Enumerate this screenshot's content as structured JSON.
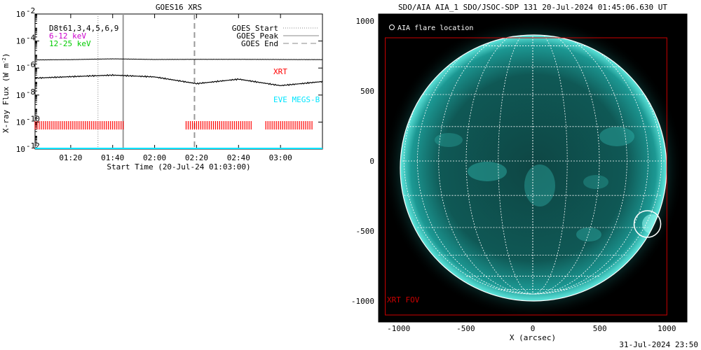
{
  "left_panel": {
    "title": "GOES16 XRS",
    "ylabel": "X-ray Flux (W m",
    "ylabel_sup": "-2",
    "ylabel_close": ")",
    "xlabel": "Start Time (20-Jul-24 01:03:00)",
    "ytick_labels": [
      "10",
      "10",
      "10",
      "10",
      "10",
      "10"
    ],
    "ytick_exps": [
      "-2",
      "-4",
      "-6",
      "-8",
      "-10",
      "-12"
    ],
    "xtick_labels": [
      "01:20",
      "01:40",
      "02:00",
      "02:20",
      "02:40",
      "03:00"
    ],
    "info_lines": [
      "D8t61,3,4,5,6,9",
      "6-12 keV",
      "12-25 keV"
    ],
    "legend": [
      {
        "label": "GOES Start",
        "style": "dotted"
      },
      {
        "label": "GOES Peak",
        "style": "solid"
      },
      {
        "label": "GOES End",
        "style": "dashed"
      }
    ],
    "annotations": {
      "xrt": "XRT",
      "eve": "EVE MEGS-B"
    },
    "colors": {
      "info_6_12": "#cc00cc",
      "info_12_25": "#00cc00",
      "xrt": "#ff0000",
      "eve": "#00ffff"
    }
  },
  "chart_data": [
    {
      "type": "line",
      "title": "GOES16 XRS",
      "xlabel": "Start Time (20-Jul-24 01:03:00)",
      "ylabel": "X-ray Flux (W m-2)",
      "y_scale": "log",
      "ylim": [
        1e-12,
        0.01
      ],
      "xlim": [
        "01:03",
        "03:20"
      ],
      "x": [
        "01:03",
        "01:20",
        "01:40",
        "02:00",
        "02:20",
        "02:40",
        "03:00",
        "03:20"
      ],
      "series": [
        {
          "values": [
            4e-06,
            4.2e-06,
            4.8e-06,
            4.3e-06,
            4.4e-06,
            4.4e-06,
            4.3e-06,
            4.2e-06
          ],
          "color": "#000000"
        },
        {
          "values": [
            1.8e-07,
            2.3e-07,
            3e-07,
            2.2e-07,
            7e-08,
            1.5e-07,
            5e-08,
            1e-07
          ],
          "color": "#000000"
        }
      ],
      "markers": {
        "goes_start": "01:33",
        "goes_peak": "01:45",
        "goes_end": "02:19"
      },
      "xrt_coverage": [
        [
          "01:03",
          "01:45"
        ],
        [
          "02:15",
          "02:46"
        ],
        [
          "02:53",
          "03:15"
        ]
      ],
      "eve_megs_b_level": 1e-12
    },
    {
      "type": "heatmap",
      "title": "SDO/AIA AIA_1 SDO/JSOC-SDP 131 20-Jul-2024 01:45:06.630 UT",
      "xlabel": "X (arcsec)",
      "xlim": [
        -1150,
        1150
      ],
      "ylim": [
        -1150,
        1050
      ],
      "xtick_labels": [
        "-1000",
        "-500",
        "0",
        "500",
        "1000"
      ],
      "ytick_labels": [
        "1000",
        "500",
        "0",
        "-500",
        "-1000"
      ],
      "legend": "AIA flare location",
      "xrt_fov": {
        "x": [
          -1100,
          1000
        ],
        "y": [
          -1100,
          880
        ]
      },
      "flare_location": [
        855,
        -450
      ],
      "annotation": "XRT FOV",
      "timestamp": "31-Jul-2024 23:50"
    }
  ],
  "right_panel": {
    "title": "SDO/AIA AIA_1 SDO/JSOC-SDP 131 20-Jul-2024 01:45:06.630 UT",
    "xlabel": "X (arcsec)",
    "xtick_labels": [
      "-1000",
      "-500",
      "0",
      "500",
      "1000"
    ],
    "ytick_labels": [
      "1000",
      "500",
      "0",
      "-500",
      "-1000"
    ],
    "legend_label": "AIA flare location",
    "fov_label": "XRT FOV",
    "timestamp": "31-Jul-2024 23:50",
    "colors": {
      "fov": "#cc0000",
      "disk": "#1fb5b0"
    }
  }
}
